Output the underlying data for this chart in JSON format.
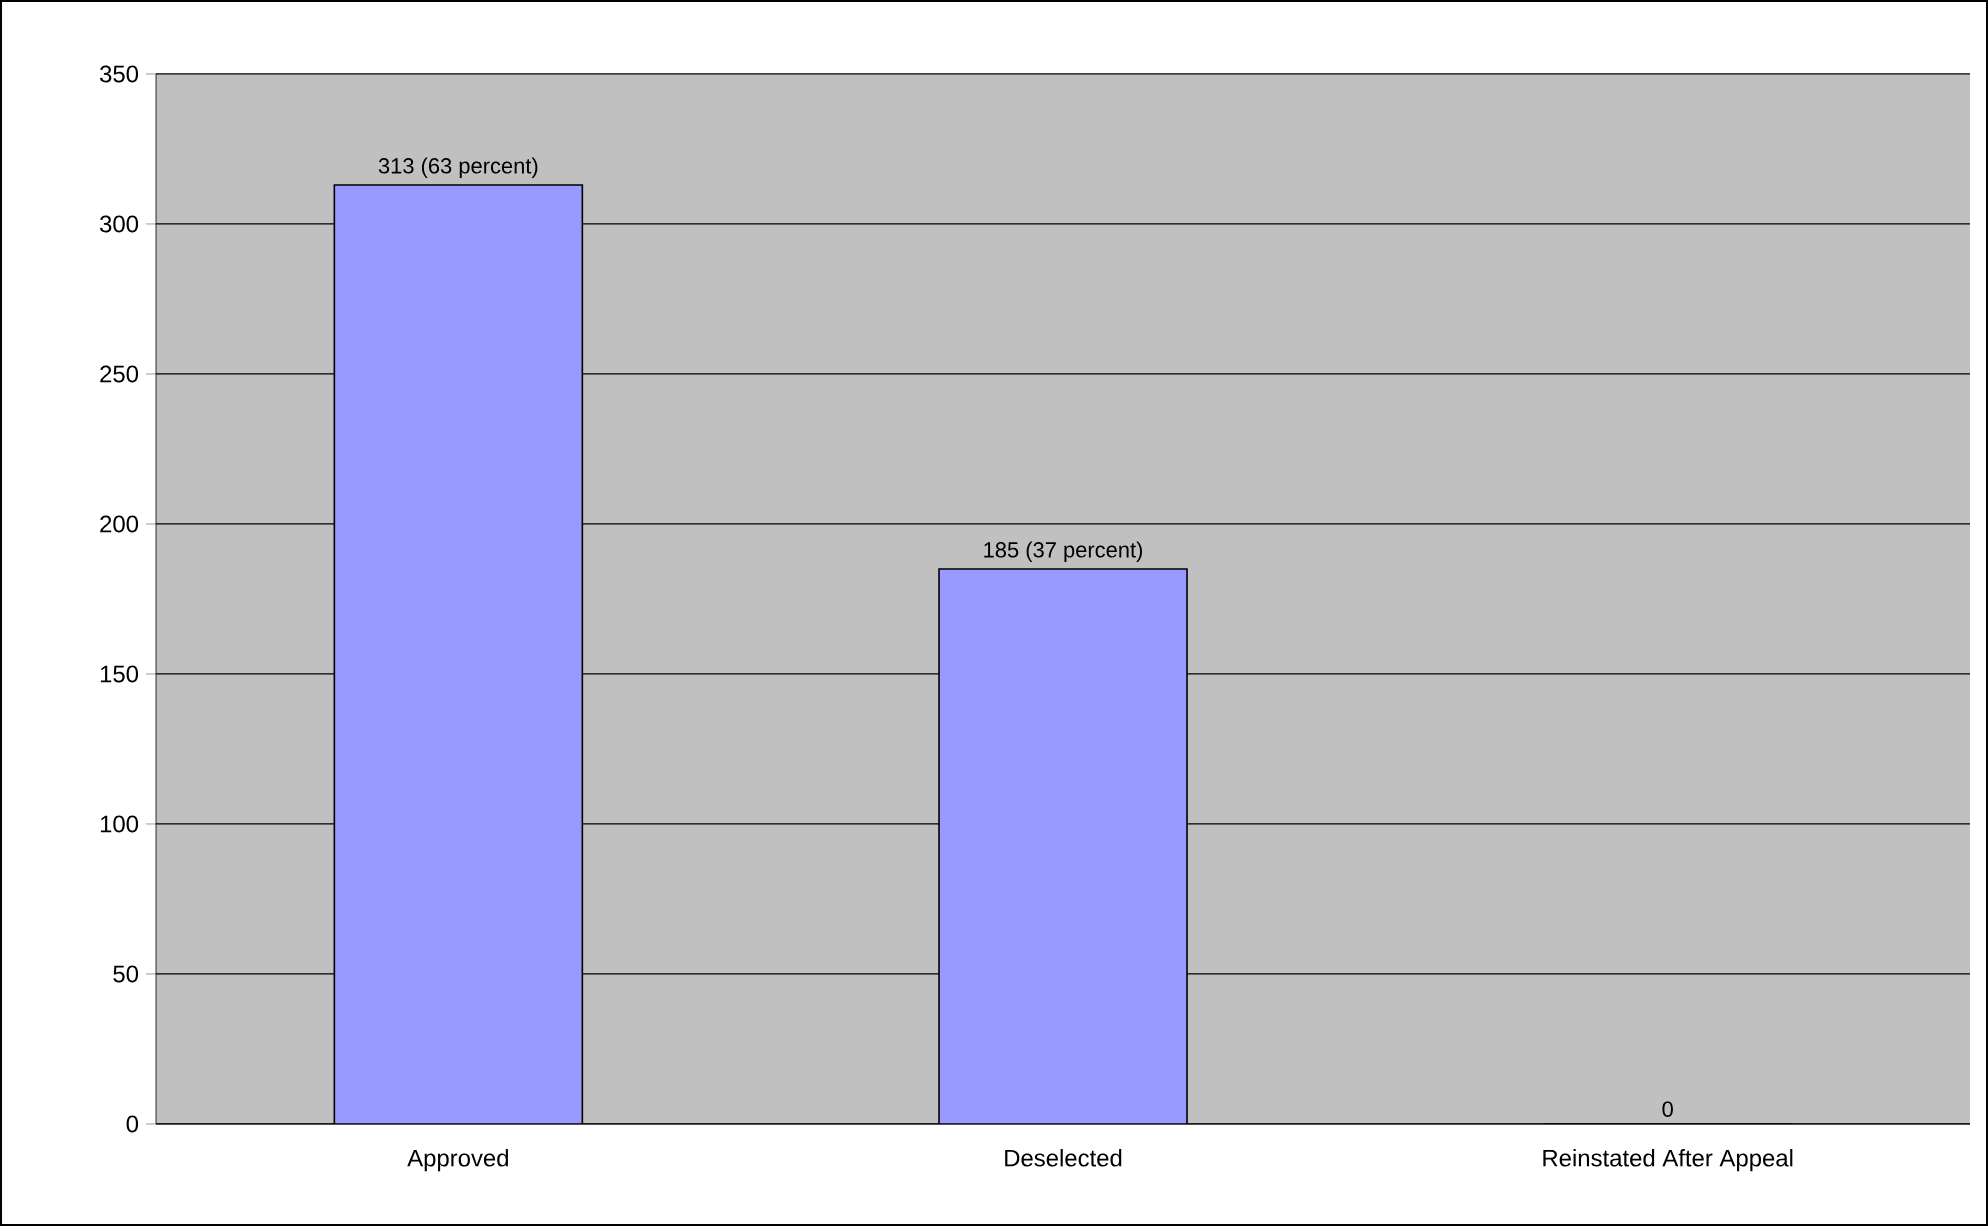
{
  "chart_data": {
    "type": "bar",
    "categories": [
      "Approved",
      "Deselected",
      "Reinstated After Appeal"
    ],
    "values": [
      313,
      185,
      0
    ],
    "value_labels": [
      "313 (63 percent)",
      "185 (37 percent)",
      "0"
    ],
    "color": "#9999ff",
    "ylim": [
      0,
      350
    ],
    "yticks": [
      0,
      50,
      100,
      150,
      200,
      250,
      300,
      350
    ],
    "grid": "y"
  }
}
